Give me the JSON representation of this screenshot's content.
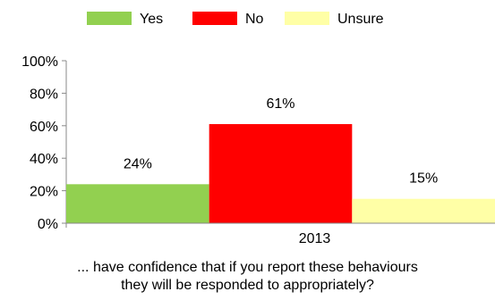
{
  "chart_data": {
    "type": "bar",
    "categories": [
      "2013"
    ],
    "series": [
      {
        "name": "Yes",
        "values": [
          24
        ],
        "color": "#92d050"
      },
      {
        "name": "No",
        "values": [
          61
        ],
        "color": "#ff0000"
      },
      {
        "name": "Unsure",
        "values": [
          15
        ],
        "color": "#ffffa6"
      }
    ],
    "data_labels": [
      "24%",
      "61%",
      "15%"
    ],
    "ylim": [
      0,
      100
    ],
    "y_ticks": [
      "0%",
      "20%",
      "40%",
      "60%",
      "80%",
      "100%"
    ],
    "grid": false,
    "legend": "top-center",
    "caption_lines": [
      "... have confidence that if you report these behaviours",
      "they will be responded to appropriately?"
    ]
  }
}
